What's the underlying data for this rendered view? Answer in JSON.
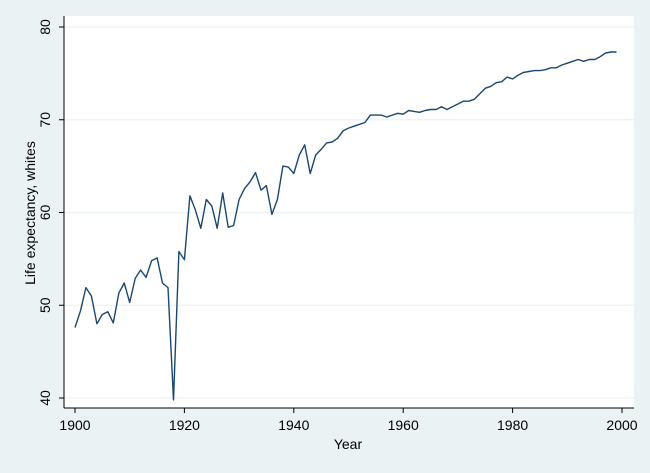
{
  "chart_data": {
    "type": "line",
    "xlabel": "Year",
    "ylabel": "Life expectancy, whites",
    "xlim": [
      1900,
      2000
    ],
    "ylim": [
      40,
      80
    ],
    "xticks": [
      1900,
      1920,
      1940,
      1960,
      1980,
      2000
    ],
    "yticks": [
      40,
      50,
      60,
      70,
      80
    ],
    "grid": "horizontal",
    "legend": "none",
    "colors": {
      "line": "#1a476f",
      "grid": "#eaf2f3",
      "plot_bg": "#ffffff",
      "outer_bg": "#eaf2f3",
      "axis": "#000000"
    },
    "series": [
      {
        "x": [
          1900,
          1901,
          1902,
          1903,
          1904,
          1905,
          1906,
          1907,
          1908,
          1909,
          1910,
          1911,
          1912,
          1913,
          1914,
          1915,
          1916,
          1917,
          1918,
          1919,
          1920,
          1921,
          1922,
          1923,
          1924,
          1925,
          1926,
          1927,
          1928,
          1929,
          1930,
          1931,
          1932,
          1933,
          1934,
          1935,
          1936,
          1937,
          1938,
          1939,
          1940,
          1941,
          1942,
          1943,
          1944,
          1945,
          1946,
          1947,
          1948,
          1949,
          1950,
          1951,
          1952,
          1953,
          1954,
          1955,
          1956,
          1957,
          1958,
          1959,
          1960,
          1961,
          1962,
          1963,
          1964,
          1965,
          1966,
          1967,
          1968,
          1969,
          1970,
          1971,
          1972,
          1973,
          1974,
          1975,
          1976,
          1977,
          1978,
          1979,
          1980,
          1981,
          1982,
          1983,
          1984,
          1985,
          1986,
          1987,
          1988,
          1989,
          1990,
          1991,
          1992,
          1993,
          1994,
          1995,
          1996,
          1997,
          1998,
          1999
        ],
        "values": [
          47.6,
          49.4,
          51.9,
          51.0,
          48.0,
          49.0,
          49.3,
          48.1,
          51.3,
          52.4,
          50.3,
          52.9,
          53.8,
          53.0,
          54.8,
          55.1,
          52.4,
          51.9,
          39.8,
          55.8,
          54.9,
          61.8,
          60.3,
          58.3,
          61.4,
          60.7,
          58.3,
          62.1,
          58.4,
          58.6,
          61.4,
          62.6,
          63.3,
          64.3,
          62.4,
          62.9,
          59.8,
          61.4,
          65.0,
          64.9,
          64.2,
          66.2,
          67.3,
          64.2,
          66.2,
          66.8,
          67.5,
          67.6,
          68.0,
          68.8,
          69.1,
          69.3,
          69.5,
          69.7,
          70.5,
          70.5,
          70.5,
          70.3,
          70.5,
          70.7,
          70.6,
          71.0,
          70.9,
          70.8,
          71.0,
          71.1,
          71.1,
          71.4,
          71.1,
          71.4,
          71.7,
          72.0,
          72.0,
          72.2,
          72.8,
          73.4,
          73.6,
          74.0,
          74.1,
          74.6,
          74.4,
          74.8,
          75.1,
          75.2,
          75.3,
          75.3,
          75.4,
          75.6,
          75.6,
          75.9,
          76.1,
          76.3,
          76.5,
          76.3,
          76.5,
          76.5,
          76.8,
          77.2,
          77.3,
          77.3
        ]
      }
    ]
  }
}
